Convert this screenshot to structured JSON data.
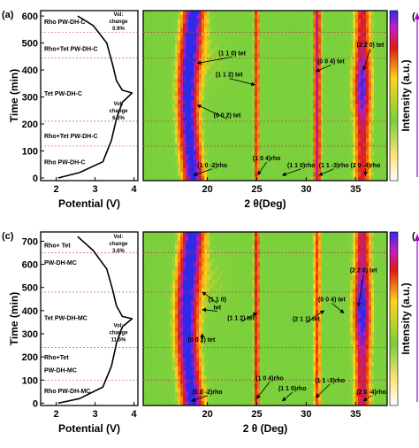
{
  "colors": {
    "bg": "#ffffff",
    "heat_low": "#79cf3c",
    "heat_mid": "#ffd31a",
    "heat_high": "#e01c10",
    "heat_max": "#2f2ae8",
    "guide_line": "#c23a3a",
    "arrow": "#b000c8"
  },
  "chart_data": [
    {
      "panel": "(a)",
      "type": "line",
      "xlabel": "Potential (V)",
      "ylabel": "Time (min)",
      "xticks": [
        2,
        3,
        4
      ],
      "xlim": [
        1.6,
        4.1
      ],
      "yticks": [
        0,
        100,
        200,
        300,
        400,
        500,
        600
      ],
      "ylim": [
        -10,
        620
      ],
      "voltage_profile": {
        "x": [
          2.05,
          2.6,
          3.2,
          3.42,
          3.55,
          3.7,
          3.95,
          3.7,
          3.55,
          3.45,
          3.3,
          2.95,
          2.55
        ],
        "y": [
          0,
          20,
          60,
          140,
          220,
          280,
          315,
          325,
          360,
          420,
          500,
          565,
          600
        ]
      },
      "guide_lines_min": [
        118,
        210,
        445,
        540
      ],
      "phase_labels": [
        {
          "text": "Rho PW-DH-C",
          "y": 580
        },
        {
          "text": "Rho+Tet PW-DH-C",
          "y": 480
        },
        {
          "text": "Tet PW-DH-C",
          "y": 315
        },
        {
          "text": "Rho+Tet PW-DH-C",
          "y": 158
        },
        {
          "text": "Rho PW-DH-C",
          "y": 60
        }
      ],
      "vol_changes": [
        {
          "lines": [
            "Vol:",
            "change",
            "0.9%"
          ],
          "y": 580
        },
        {
          "lines": [
            "Vol:",
            "change",
            "6.3%"
          ],
          "y": 250
        }
      ]
    },
    {
      "panel": "(a)",
      "type": "heatmap",
      "xlabel": "2 θ(Deg)",
      "xticks": [
        20,
        25,
        30,
        35
      ],
      "xlim": [
        13.5,
        38.2
      ],
      "ylim": [
        -10,
        620
      ],
      "colorbar_label": "Intensity (a.u.)",
      "guide_lines_min": [
        118,
        210,
        445,
        540
      ],
      "reflections": [
        {
          "label": "(1 1 0) tet",
          "x": 22.5,
          "y": 455,
          "ax": 19.0,
          "ay": 425
        },
        {
          "label": "(1 1 2) tet",
          "x": 22.2,
          "y": 375,
          "ax": 24.8,
          "ay": 345
        },
        {
          "label": "(0 0 2) tet",
          "x": 22.0,
          "y": 225,
          "ax": 19.0,
          "ay": 270
        },
        {
          "label": "(1 0 -2)rho",
          "x": 20.5,
          "y": 40,
          "ax": 18.6,
          "ay": 10
        },
        {
          "label": "(1 0 4)rho",
          "x": 26.0,
          "y": 65,
          "ax": 25.1,
          "ay": 12
        },
        {
          "label": "(1 1 0)rho",
          "x": 29.5,
          "y": 40,
          "ax": 27.6,
          "ay": 10
        },
        {
          "label": "(1 1 -3)rho",
          "x": 32.8,
          "y": 40,
          "ax": 31.3,
          "ay": 10
        },
        {
          "label": "(0 0 4) tet",
          "x": 32.5,
          "y": 425,
          "ax": 31.0,
          "ay": 395
        },
        {
          "label": "(2 2 0) tet",
          "x": 36.5,
          "y": 485,
          "ax": 35.8,
          "ay": 400
        },
        {
          "label": "(2 0 -4)rho",
          "x": 36.0,
          "y": 40,
          "ax": 36.0,
          "ay": 10
        }
      ],
      "peaks": [
        {
          "x": 18.6,
          "w": 1.3,
          "i": 1.0
        },
        {
          "x": 25.0,
          "w": 0.35,
          "i": 0.7
        },
        {
          "x": 31.1,
          "w": 0.5,
          "i": 0.8
        },
        {
          "x": 35.7,
          "w": 1.0,
          "i": 0.75
        }
      ]
    },
    {
      "panel": "(c)",
      "type": "line",
      "xlabel": "Potential (V)",
      "ylabel": "Time (min)",
      "xticks": [
        2,
        3,
        4
      ],
      "xlim": [
        1.6,
        4.1
      ],
      "yticks": [
        0,
        100,
        200,
        300,
        400,
        500,
        600,
        700
      ],
      "ylim": [
        -10,
        740
      ],
      "voltage_profile": {
        "x": [
          2.05,
          2.6,
          3.2,
          3.42,
          3.55,
          3.7,
          3.95,
          3.7,
          3.55,
          3.45,
          3.3,
          2.95,
          2.55
        ],
        "y": [
          0,
          20,
          70,
          160,
          260,
          330,
          365,
          375,
          420,
          490,
          580,
          660,
          720
        ]
      },
      "guide_lines_min": [
        100,
        240,
        480,
        650
      ],
      "phase_labels": [
        {
          "text": "Rho+ Tet",
          "y": 685
        },
        {
          "text": "PW-DH-MC",
          "y": 610
        },
        {
          "text": "Tet PW-DH-MC",
          "y": 370
        },
        {
          "text": "Rho+Tet",
          "y": 200
        },
        {
          "text": "PW-DH-MC",
          "y": 145
        },
        {
          "text": "Rho PW-DH-MC",
          "y": 55
        }
      ],
      "vol_changes": [
        {
          "lines": [
            "Vol:",
            "change",
            "3.6%"
          ],
          "y": 690
        },
        {
          "lines": [
            "Vol:",
            "change",
            "11.5%"
          ],
          "y": 305
        }
      ]
    },
    {
      "panel": "(c)",
      "type": "heatmap",
      "xlabel": "2 θ (Deg)",
      "xticks": [
        20,
        25,
        30,
        35
      ],
      "xlim": [
        13.5,
        38.2
      ],
      "ylim": [
        -10,
        740
      ],
      "colorbar_label": "Intensity (a.u.)",
      "guide_lines_min": [
        100,
        240,
        480,
        650
      ],
      "reflections": [
        {
          "label": "(1 1 0)",
          "x": 21.0,
          "y": 440,
          "ax": 19.5,
          "ay": 480
        },
        {
          "label": "tet",
          "x": 21.0,
          "y": 405,
          "ax": 19.5,
          "ay": 405
        },
        {
          "label": "(1 1 2) tet",
          "x": 23.4,
          "y": 360,
          "ax": 25.0,
          "ay": 390
        },
        {
          "label": "(0 0 2) tet",
          "x": 19.4,
          "y": 265,
          "ax": 19.5,
          "ay": 300
        },
        {
          "label": "(2 1 1) tet",
          "x": 30.0,
          "y": 355,
          "ax": 31.8,
          "ay": 400
        },
        {
          "label": "(0 0 4) tet",
          "x": 32.6,
          "y": 440,
          "ax": 33.8,
          "ay": 390
        },
        {
          "label": "(2 2 0) tet",
          "x": 35.8,
          "y": 565,
          "ax": 35.3,
          "ay": 420
        },
        {
          "label": "(1 0 -2)rho",
          "x": 20.0,
          "y": 40,
          "ax": 18.4,
          "ay": 10
        },
        {
          "label": "(1 0 4)rho",
          "x": 26.3,
          "y": 100,
          "ax": 25.0,
          "ay": 20
        },
        {
          "label": "(1 1 0)rho",
          "x": 28.6,
          "y": 55,
          "ax": 27.6,
          "ay": 10
        },
        {
          "label": "(1 1 -3)rho",
          "x": 32.4,
          "y": 90,
          "ax": 31.0,
          "ay": 25
        },
        {
          "label": "(2 0 -4)rho",
          "x": 36.6,
          "y": 40,
          "ax": 35.8,
          "ay": 10
        }
      ],
      "peaks": [
        {
          "x": 18.5,
          "w": 1.4,
          "i": 1.0
        },
        {
          "x": 25.0,
          "w": 0.35,
          "i": 0.75
        },
        {
          "x": 31.1,
          "w": 0.45,
          "i": 0.65
        },
        {
          "x": 35.7,
          "w": 1.0,
          "i": 0.8
        }
      ]
    }
  ],
  "side_marks": {
    "top": "(",
    "bottom": "("
  }
}
